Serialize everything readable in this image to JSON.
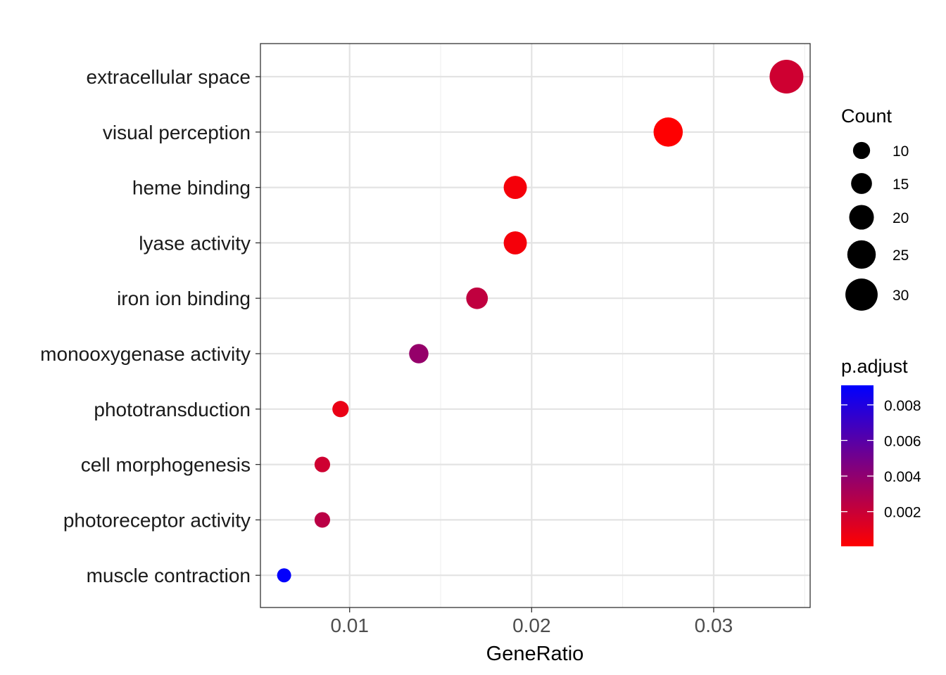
{
  "chart_data": {
    "type": "scatter",
    "xlabel": "GeneRatio",
    "ylabel": "",
    "xlim": [
      0.0051,
      0.0353
    ],
    "x_ticks": [
      0.01,
      0.02,
      0.03
    ],
    "x_tick_labels": [
      "0.01",
      "0.02",
      "0.03"
    ],
    "grid": true,
    "categories": [
      "extracellular space",
      "visual perception",
      "heme binding",
      "lyase activity",
      "iron ion binding",
      "monooxygenase activity",
      "phototransduction",
      "cell morphogenesis",
      "photoreceptor activity",
      "muscle contraction"
    ],
    "points": [
      {
        "term": "extracellular space",
        "gene_ratio": 0.034,
        "count": 32,
        "p_adjust": 0.0018
      },
      {
        "term": "visual perception",
        "gene_ratio": 0.0275,
        "count": 26,
        "p_adjust": 0.0001
      },
      {
        "term": "heme binding",
        "gene_ratio": 0.0191,
        "count": 18,
        "p_adjust": 0.0004
      },
      {
        "term": "lyase activity",
        "gene_ratio": 0.0191,
        "count": 18,
        "p_adjust": 0.0004
      },
      {
        "term": "iron ion binding",
        "gene_ratio": 0.017,
        "count": 16,
        "p_adjust": 0.0023
      },
      {
        "term": "monooxygenase activity",
        "gene_ratio": 0.0138,
        "count": 13,
        "p_adjust": 0.0038
      },
      {
        "term": "phototransduction",
        "gene_ratio": 0.0095,
        "count": 9,
        "p_adjust": 0.0008
      },
      {
        "term": "cell morphogenesis",
        "gene_ratio": 0.0085,
        "count": 8,
        "p_adjust": 0.0018
      },
      {
        "term": "photoreceptor activity",
        "gene_ratio": 0.0085,
        "count": 8,
        "p_adjust": 0.0025
      },
      {
        "term": "muscle contraction",
        "gene_ratio": 0.0064,
        "count": 6,
        "p_adjust": 0.009
      }
    ],
    "size_legend": {
      "title": "Count",
      "values": [
        10,
        15,
        20,
        25,
        30
      ],
      "labels": [
        "10",
        "15",
        "20",
        "25",
        "30"
      ],
      "placement": "right"
    },
    "color_legend": {
      "title": "p.adjust",
      "low_color": "#FF0000",
      "high_color": "#0000FF",
      "range": [
        5e-05,
        0.0091
      ],
      "ticks": [
        0.002,
        0.004,
        0.006,
        0.008
      ],
      "tick_labels": [
        "0.002",
        "0.004",
        "0.006",
        "0.008"
      ],
      "placement": "right"
    }
  }
}
